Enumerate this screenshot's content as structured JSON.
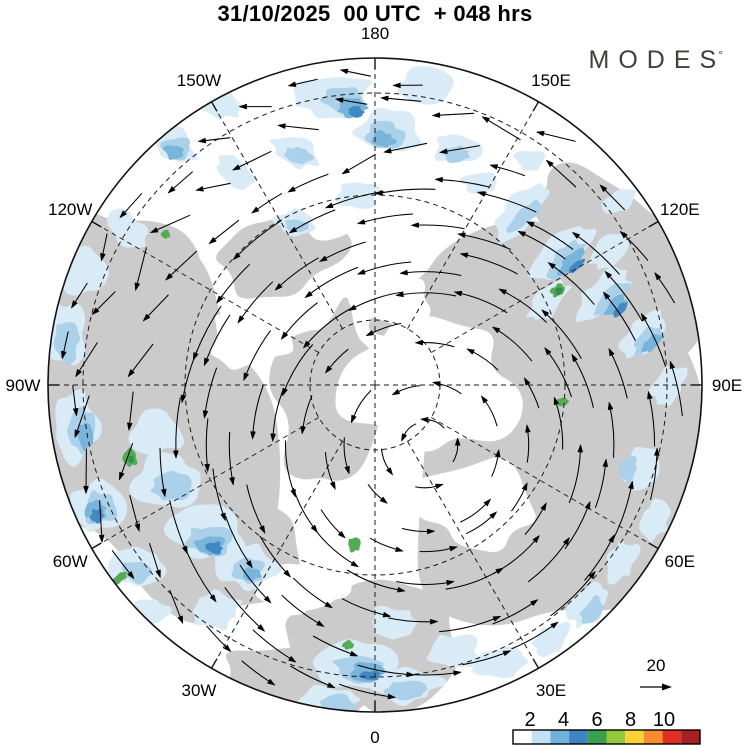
{
  "header": {
    "title": "31/10/2025  00 UTC  + 048 hrs",
    "logo_text": "MODES",
    "logo_mark": "°"
  },
  "map": {
    "projection": "north-polar-stereographic",
    "longitude_labels": [
      {
        "text": "180",
        "azimuth_deg": 0
      },
      {
        "text": "150E",
        "azimuth_deg": 30
      },
      {
        "text": "120E",
        "azimuth_deg": 60
      },
      {
        "text": "90E",
        "azimuth_deg": 90
      },
      {
        "text": "60E",
        "azimuth_deg": 120
      },
      {
        "text": "30E",
        "azimuth_deg": 150
      },
      {
        "text": "0",
        "azimuth_deg": 180
      },
      {
        "text": "30W",
        "azimuth_deg": 210
      },
      {
        "text": "60W",
        "azimuth_deg": 240
      },
      {
        "text": "90W",
        "azimuth_deg": 270
      },
      {
        "text": "120W",
        "azimuth_deg": 300
      },
      {
        "text": "150W",
        "azimuth_deg": 330
      }
    ],
    "colors": {
      "land": "#cbcbcb",
      "background": "#ffffff",
      "graticule": "#1a1a1a",
      "outline": "#111111",
      "precip_shades": [
        "#d9ebf7",
        "#abd0e9",
        "#79b4da",
        "#4189c2",
        "#55aa55",
        "#2f8f46"
      ]
    }
  },
  "wind": {
    "reference_value": "20",
    "arrow_color": "#000000",
    "rotation": "counterclockwise"
  },
  "colorbar": {
    "labels": [
      "2",
      "4",
      "6",
      "8",
      "10"
    ],
    "segment_colors": [
      "#ffffff",
      "#c3e1f5",
      "#6fb1dc",
      "#3b86c0",
      "#39a04e",
      "#94c83d",
      "#fbd337",
      "#f68b2f",
      "#dd2f23",
      "#a62024"
    ],
    "outline": "#000000"
  },
  "chart_data": {
    "type": "heatmap",
    "subtype": "polar-stereographic-wind-and-shaded-field-map",
    "title": "31/10/2025 00 UTC + 048 hrs",
    "valid_time": "31/10/2025 00 UTC",
    "lead_time_label": "+ 048 hrs",
    "source_logo": "MODES°",
    "longitude_ticks": [
      "180",
      "150E",
      "120E",
      "90E",
      "60E",
      "30E",
      "0",
      "30W",
      "60W",
      "90W",
      "120W",
      "150W"
    ],
    "graticule": "dashed latitude circles and 30-degree meridians",
    "colorbar": {
      "n_segments": 10,
      "tick_labels": [
        2,
        4,
        6,
        8,
        10
      ],
      "segment_colors": [
        "#ffffff",
        "#c3e1f5",
        "#6fb1dc",
        "#3b86c0",
        "#39a04e",
        "#94c83d",
        "#fbd337",
        "#f68b2f",
        "#dd2f23",
        "#a62024"
      ],
      "position": "bottom-right"
    },
    "wind_reference_vector": 20,
    "wind_field": "counterclockwise circumpolar vortex of curved black arrows, strongest in an annulus around a calm eye right of the pole",
    "shaded_field": "gray mid-latitude masses with scattered light-to-medium blue patches (values 1-4) and a few green spots (values 4-6)"
  }
}
